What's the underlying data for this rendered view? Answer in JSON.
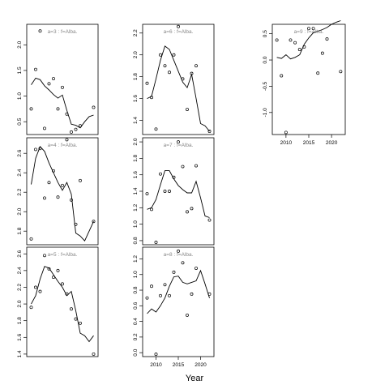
{
  "figure": {
    "xlabel": "Year",
    "background": "#ffffff",
    "ink": "#000000",
    "label_color": "#888888"
  },
  "chart_data": [
    {
      "type": "scatter",
      "label": "a=3  :  f=Alba.",
      "xlim": [
        2007,
        2023
      ],
      "ylim": [
        0.25,
        2.4
      ],
      "xticks": [],
      "yticks": [
        0.5,
        1.0,
        1.5,
        2.0
      ],
      "points": {
        "x": [
          2008,
          2009,
          2010,
          2011,
          2012,
          2013,
          2014,
          2015,
          2016,
          2017,
          2018,
          2019,
          2022
        ],
        "y": [
          0.75,
          1.52,
          2.27,
          0.37,
          1.24,
          1.34,
          0.75,
          1.17,
          0.65,
          0.3,
          0.35,
          0.42,
          0.78
        ]
      },
      "line": {
        "x": [
          2008,
          2009,
          2010,
          2011,
          2012,
          2013,
          2014,
          2015,
          2016,
          2017,
          2018,
          2019,
          2020,
          2021,
          2022
        ],
        "y": [
          1.22,
          1.35,
          1.32,
          1.2,
          1.12,
          1.03,
          0.96,
          1.02,
          0.72,
          0.45,
          0.43,
          0.38,
          0.5,
          0.6,
          0.63
        ]
      }
    },
    {
      "type": "scatter",
      "label": "a=6  :  f=Alba.",
      "xlim": [
        2007,
        2023
      ],
      "ylim": [
        1.27,
        2.28
      ],
      "xticks": [],
      "yticks": [
        1.4,
        1.6,
        1.8,
        2.0,
        2.2
      ],
      "points": {
        "x": [
          2008,
          2009,
          2010,
          2011,
          2012,
          2013,
          2014,
          2015,
          2016,
          2017,
          2018,
          2019,
          2022
        ],
        "y": [
          1.74,
          1.61,
          1.32,
          2.0,
          1.9,
          1.84,
          2.0,
          2.26,
          1.78,
          1.5,
          1.83,
          1.9,
          1.3
        ]
      },
      "line": {
        "x": [
          2008,
          2009,
          2010,
          2011,
          2012,
          2013,
          2014,
          2015,
          2016,
          2017,
          2018,
          2019,
          2020,
          2021,
          2022
        ],
        "y": [
          1.6,
          1.62,
          1.78,
          1.95,
          2.08,
          2.05,
          1.95,
          1.85,
          1.75,
          1.7,
          1.82,
          1.6,
          1.37,
          1.35,
          1.3
        ]
      }
    },
    {
      "type": "scatter",
      "label": "a=9  :  f=Alba.",
      "xlim": [
        2007,
        2023
      ],
      "ylim": [
        -1.42,
        0.68
      ],
      "xticks": [
        2010,
        2015,
        2020
      ],
      "yticks": [
        -1.0,
        -0.5,
        0.0,
        0.5
      ],
      "points": {
        "x": [
          2008,
          2009,
          2010,
          2011,
          2012,
          2013,
          2014,
          2015,
          2016,
          2017,
          2018,
          2019,
          2022
        ],
        "y": [
          0.38,
          -0.3,
          -1.38,
          0.38,
          0.33,
          0.2,
          0.25,
          0.6,
          0.6,
          -0.25,
          0.13,
          0.4,
          -0.22
        ]
      },
      "line": {
        "x": [
          2008,
          2009,
          2010,
          2011,
          2012,
          2013,
          2014,
          2015,
          2016,
          2017,
          2018,
          2019,
          2020,
          2021,
          2022
        ],
        "y": [
          0.05,
          0.03,
          0.1,
          0.02,
          0.05,
          0.1,
          0.3,
          0.42,
          0.52,
          0.55,
          0.58,
          0.62,
          0.68,
          0.72,
          0.75
        ]
      }
    },
    {
      "type": "scatter",
      "label": "a=4  :  f=Alba.",
      "xlim": [
        2007,
        2023
      ],
      "ylim": [
        1.66,
        2.76
      ],
      "xticks": [],
      "yticks": [
        1.8,
        2.0,
        2.2,
        2.4,
        2.6
      ],
      "points": {
        "x": [
          2008,
          2009,
          2010,
          2011,
          2012,
          2013,
          2014,
          2015,
          2016,
          2017,
          2018,
          2019,
          2022
        ],
        "y": [
          1.72,
          2.64,
          2.65,
          2.14,
          2.3,
          2.42,
          2.15,
          2.27,
          2.74,
          2.12,
          1.87,
          2.32,
          1.9
        ]
      },
      "line": {
        "x": [
          2008,
          2009,
          2010,
          2011,
          2012,
          2013,
          2014,
          2015,
          2016,
          2017,
          2018,
          2019,
          2020,
          2021,
          2022
        ],
        "y": [
          2.28,
          2.55,
          2.67,
          2.62,
          2.5,
          2.4,
          2.3,
          2.22,
          2.3,
          2.18,
          1.78,
          1.75,
          1.7,
          1.8,
          1.9
        ]
      }
    },
    {
      "type": "scatter",
      "label": "a=7  :  f=Alba.",
      "xlim": [
        2007,
        2023
      ],
      "ylim": [
        0.75,
        2.05
      ],
      "xticks": [],
      "yticks": [
        0.8,
        1.0,
        1.2,
        1.4,
        1.6,
        1.8,
        2.0
      ],
      "points": {
        "x": [
          2008,
          2009,
          2010,
          2011,
          2012,
          2013,
          2014,
          2015,
          2016,
          2017,
          2018,
          2019,
          2022
        ],
        "y": [
          1.37,
          1.18,
          0.78,
          1.61,
          1.4,
          1.4,
          1.57,
          2.0,
          1.7,
          1.15,
          1.19,
          1.71,
          1.05
        ]
      },
      "line": {
        "x": [
          2008,
          2009,
          2010,
          2011,
          2012,
          2013,
          2014,
          2015,
          2016,
          2017,
          2018,
          2019,
          2020,
          2021,
          2022
        ],
        "y": [
          1.18,
          1.2,
          1.3,
          1.48,
          1.65,
          1.65,
          1.55,
          1.47,
          1.42,
          1.38,
          1.38,
          1.52,
          1.32,
          1.1,
          1.08
        ]
      }
    },
    {
      "type": "scatter",
      "label": "a=5  :  f=Alba.",
      "xlim": [
        2007,
        2023
      ],
      "ylim": [
        1.37,
        2.68
      ],
      "xticks": [],
      "yticks": [
        1.4,
        1.6,
        1.8,
        2.0,
        2.2,
        2.4,
        2.6
      ],
      "points": {
        "x": [
          2008,
          2009,
          2010,
          2011,
          2012,
          2013,
          2014,
          2015,
          2016,
          2017,
          2018,
          2019,
          2022
        ],
        "y": [
          1.96,
          2.2,
          2.15,
          2.58,
          2.42,
          2.32,
          2.4,
          2.24,
          2.12,
          1.94,
          1.82,
          1.77,
          1.4
        ]
      },
      "line": {
        "x": [
          2008,
          2009,
          2010,
          2011,
          2012,
          2013,
          2014,
          2015,
          2016,
          2017,
          2018,
          2019,
          2020,
          2021,
          2022
        ],
        "y": [
          2.0,
          2.1,
          2.3,
          2.45,
          2.43,
          2.35,
          2.27,
          2.2,
          2.1,
          2.15,
          1.92,
          1.65,
          1.62,
          1.55,
          1.62
        ]
      }
    },
    {
      "type": "scatter",
      "label": "a=8  :  f=Alba.",
      "xlim": [
        2007,
        2023
      ],
      "ylim": [
        -0.05,
        1.35
      ],
      "xticks": [
        2010,
        2015,
        2020
      ],
      "yticks": [
        0.0,
        0.2,
        0.4,
        0.6,
        0.8,
        1.0,
        1.2
      ],
      "points": {
        "x": [
          2008,
          2009,
          2010,
          2011,
          2012,
          2013,
          2014,
          2015,
          2016,
          2017,
          2018,
          2019,
          2022
        ],
        "y": [
          0.7,
          0.85,
          -0.02,
          0.73,
          0.87,
          0.73,
          1.03,
          1.3,
          1.15,
          0.48,
          0.75,
          1.08,
          0.75
        ]
      },
      "line": {
        "x": [
          2008,
          2009,
          2010,
          2011,
          2012,
          2013,
          2014,
          2015,
          2016,
          2017,
          2018,
          2019,
          2020,
          2021,
          2022
        ],
        "y": [
          0.5,
          0.56,
          0.52,
          0.6,
          0.7,
          0.85,
          0.97,
          0.98,
          0.9,
          0.88,
          0.9,
          0.92,
          1.05,
          0.88,
          0.7
        ]
      }
    }
  ]
}
